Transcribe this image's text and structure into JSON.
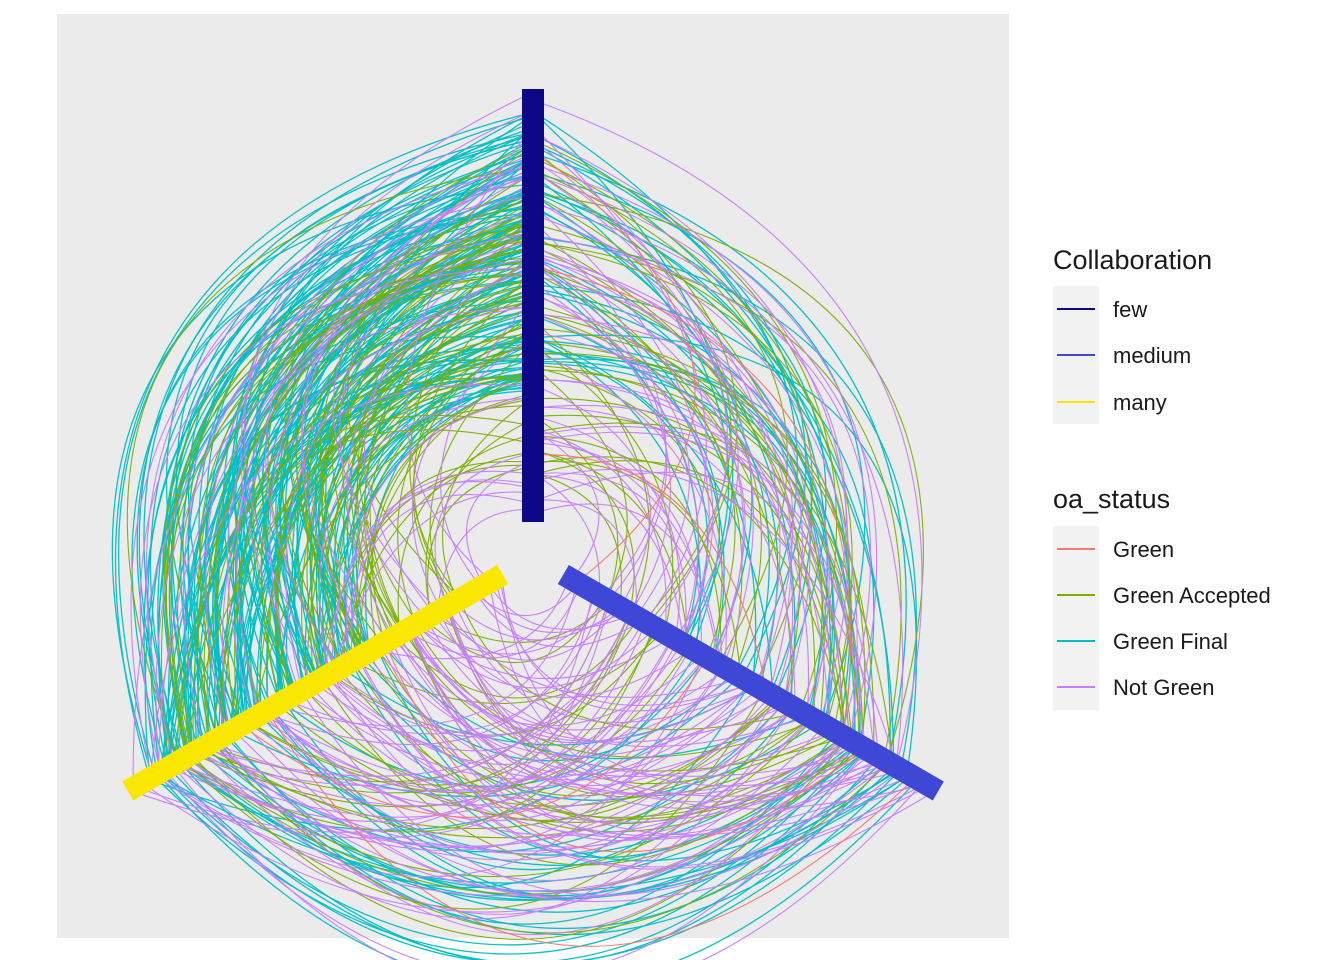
{
  "chart_data": {
    "type": "hive-plot",
    "title": "",
    "axes": [
      {
        "name": "few",
        "color": "#0D0887",
        "angle_deg": 90
      },
      {
        "name": "medium",
        "color": "#3F48D6",
        "angle_deg": -30
      },
      {
        "name": "many",
        "color": "#F9E700",
        "angle_deg": 210
      }
    ],
    "legends": [
      {
        "title": "Collaboration",
        "entries": [
          {
            "label": "few",
            "color": "#0D0887"
          },
          {
            "label": "medium",
            "color": "#3F48D6"
          },
          {
            "label": "many",
            "color": "#F9E700"
          }
        ]
      },
      {
        "title": "oa_status",
        "entries": [
          {
            "label": "Green",
            "color": "#F8766D"
          },
          {
            "label": "Green Accepted",
            "color": "#7CAE00"
          },
          {
            "label": "Green Final",
            "color": "#00BFC4"
          },
          {
            "label": "Not Green",
            "color": "#C77CFF"
          }
        ]
      }
    ],
    "edge_counts": {
      "Green": 6,
      "Green Accepted": 140,
      "Green Final": 220,
      "Not Green": 170
    },
    "panel_background": "#EBEBEB",
    "grid": false
  }
}
